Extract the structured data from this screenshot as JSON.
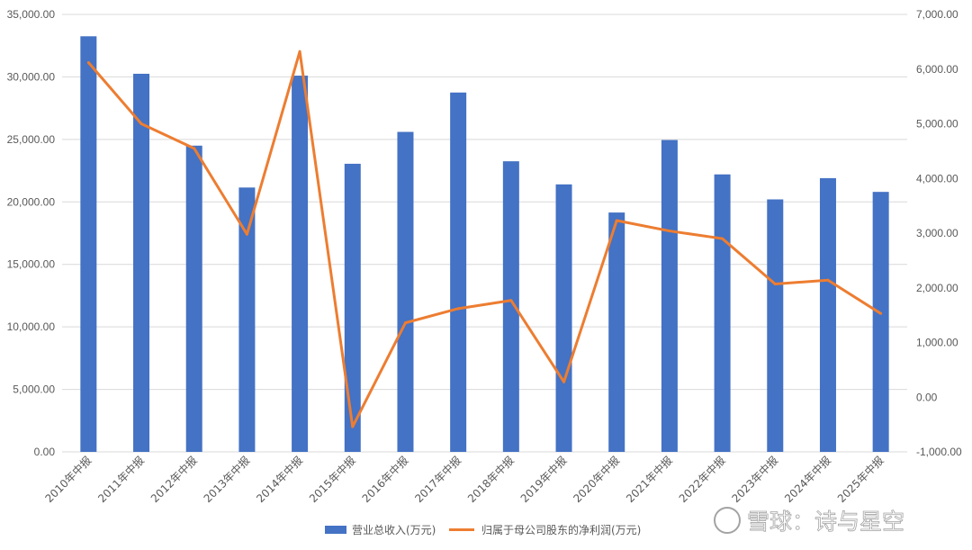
{
  "chart_data": {
    "type": "bar",
    "categories": [
      "2010年中报",
      "2011年中报",
      "2012年中报",
      "2013年中报",
      "2014年中报",
      "2015年中报",
      "2016年中报",
      "2017年中报",
      "2018年中报",
      "2019年中报",
      "2020年中报",
      "2021年中报",
      "2022年中报",
      "2023年中报",
      "2024年中报",
      "2025年中报"
    ],
    "series": [
      {
        "name": "营业总收入(万元)",
        "type": "bar",
        "axis": "left",
        "values": [
          33250,
          30250,
          24500,
          21150,
          30100,
          23050,
          25600,
          28750,
          23250,
          21400,
          19150,
          24950,
          22200,
          20200,
          21900,
          20800
        ]
      },
      {
        "name": "归属于母公司股东的净利润(万元)",
        "type": "line",
        "axis": "right",
        "values": [
          6120,
          5000,
          4550,
          2980,
          6320,
          -540,
          1360,
          1620,
          1770,
          280,
          3230,
          3040,
          2900,
          2070,
          2140,
          1530
        ]
      }
    ],
    "y_left": {
      "min": 0,
      "max": 35000,
      "step": 5000,
      "ticks": [
        "0.00",
        "5,000.00",
        "10,000.00",
        "15,000.00",
        "20,000.00",
        "25,000.00",
        "30,000.00",
        "35,000.00"
      ]
    },
    "y_right": {
      "min": -1000,
      "max": 7000,
      "step": 1000,
      "ticks": [
        "-1,000.00",
        "0.00",
        "1,000.00",
        "2,000.00",
        "3,000.00",
        "4,000.00",
        "5,000.00",
        "6,000.00",
        "7,000.00"
      ]
    },
    "grid": true,
    "legend_position": "bottom",
    "colors": {
      "bar": "#4472C4",
      "line": "#ED7D31",
      "grid": "#D9D9D9",
      "text": "#595959"
    }
  },
  "watermark": {
    "text": "雪球：诗与星空"
  }
}
